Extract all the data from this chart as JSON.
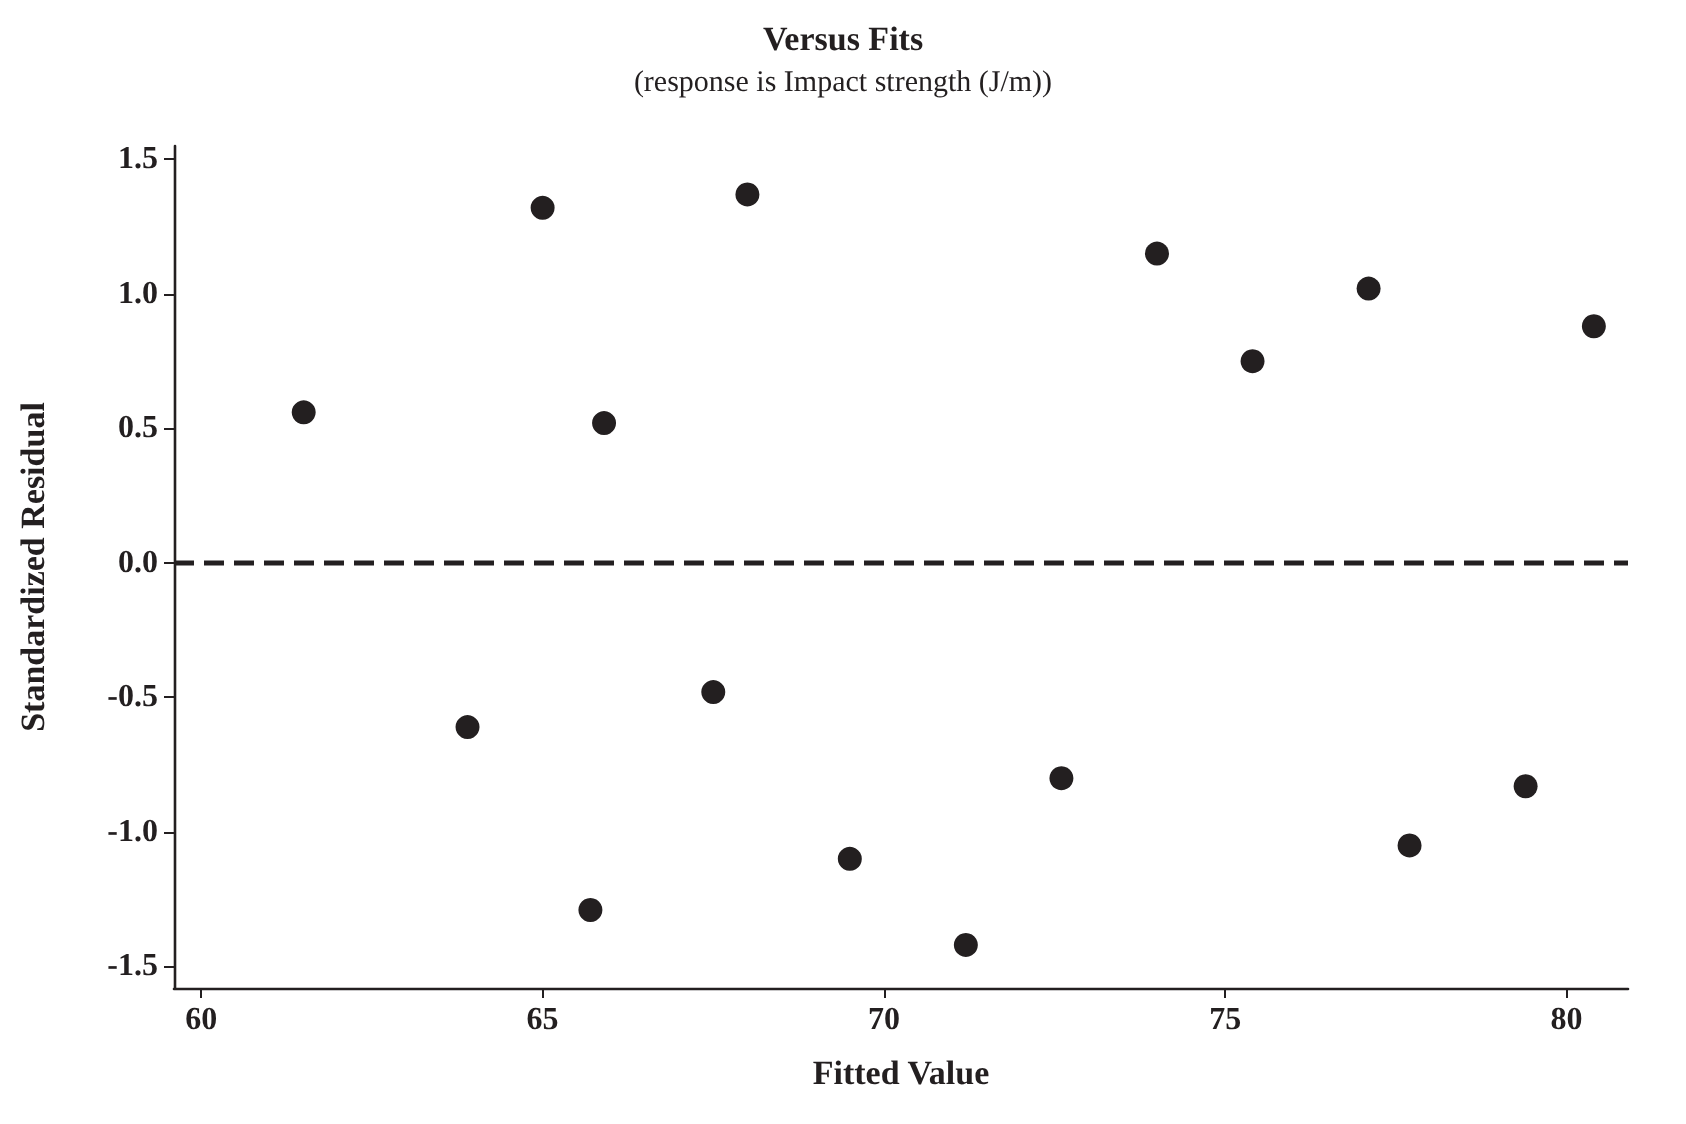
{
  "chart_data": {
    "type": "scatter",
    "title": "Versus Fits",
    "subtitle": "(response is Impact strength (J/m))",
    "xlabel": "Fitted Value",
    "ylabel": "Standardized Residual",
    "x": [
      61.5,
      63.9,
      65.0,
      65.7,
      65.9,
      67.5,
      68.0,
      69.5,
      71.2,
      72.6,
      74.0,
      75.4,
      77.1,
      77.7,
      79.4,
      80.4
    ],
    "values": [
      0.56,
      -0.61,
      1.32,
      -1.29,
      0.52,
      -0.48,
      1.37,
      -1.1,
      -1.42,
      -0.8,
      1.15,
      0.75,
      1.02,
      -1.05,
      -0.83,
      0.88
    ],
    "color": "#231f20",
    "marker": "circle",
    "xlim": [
      59.6,
      80.9
    ],
    "xticks": [
      60,
      65,
      70,
      75,
      80
    ],
    "ylim": [
      -1.58,
      1.55
    ],
    "yticks": [
      -1.5,
      {
        "value": -1,
        "label": "-1.0"
      },
      -0.5,
      {
        "value": 0,
        "label": "0.0"
      },
      0.5,
      {
        "value": 1,
        "label": "1.0"
      },
      1.5
    ],
    "ref_lines": [
      {
        "axis": "y",
        "value": 0,
        "line_style": "dashed",
        "color": "#231f20"
      }
    ],
    "grid": false
  }
}
